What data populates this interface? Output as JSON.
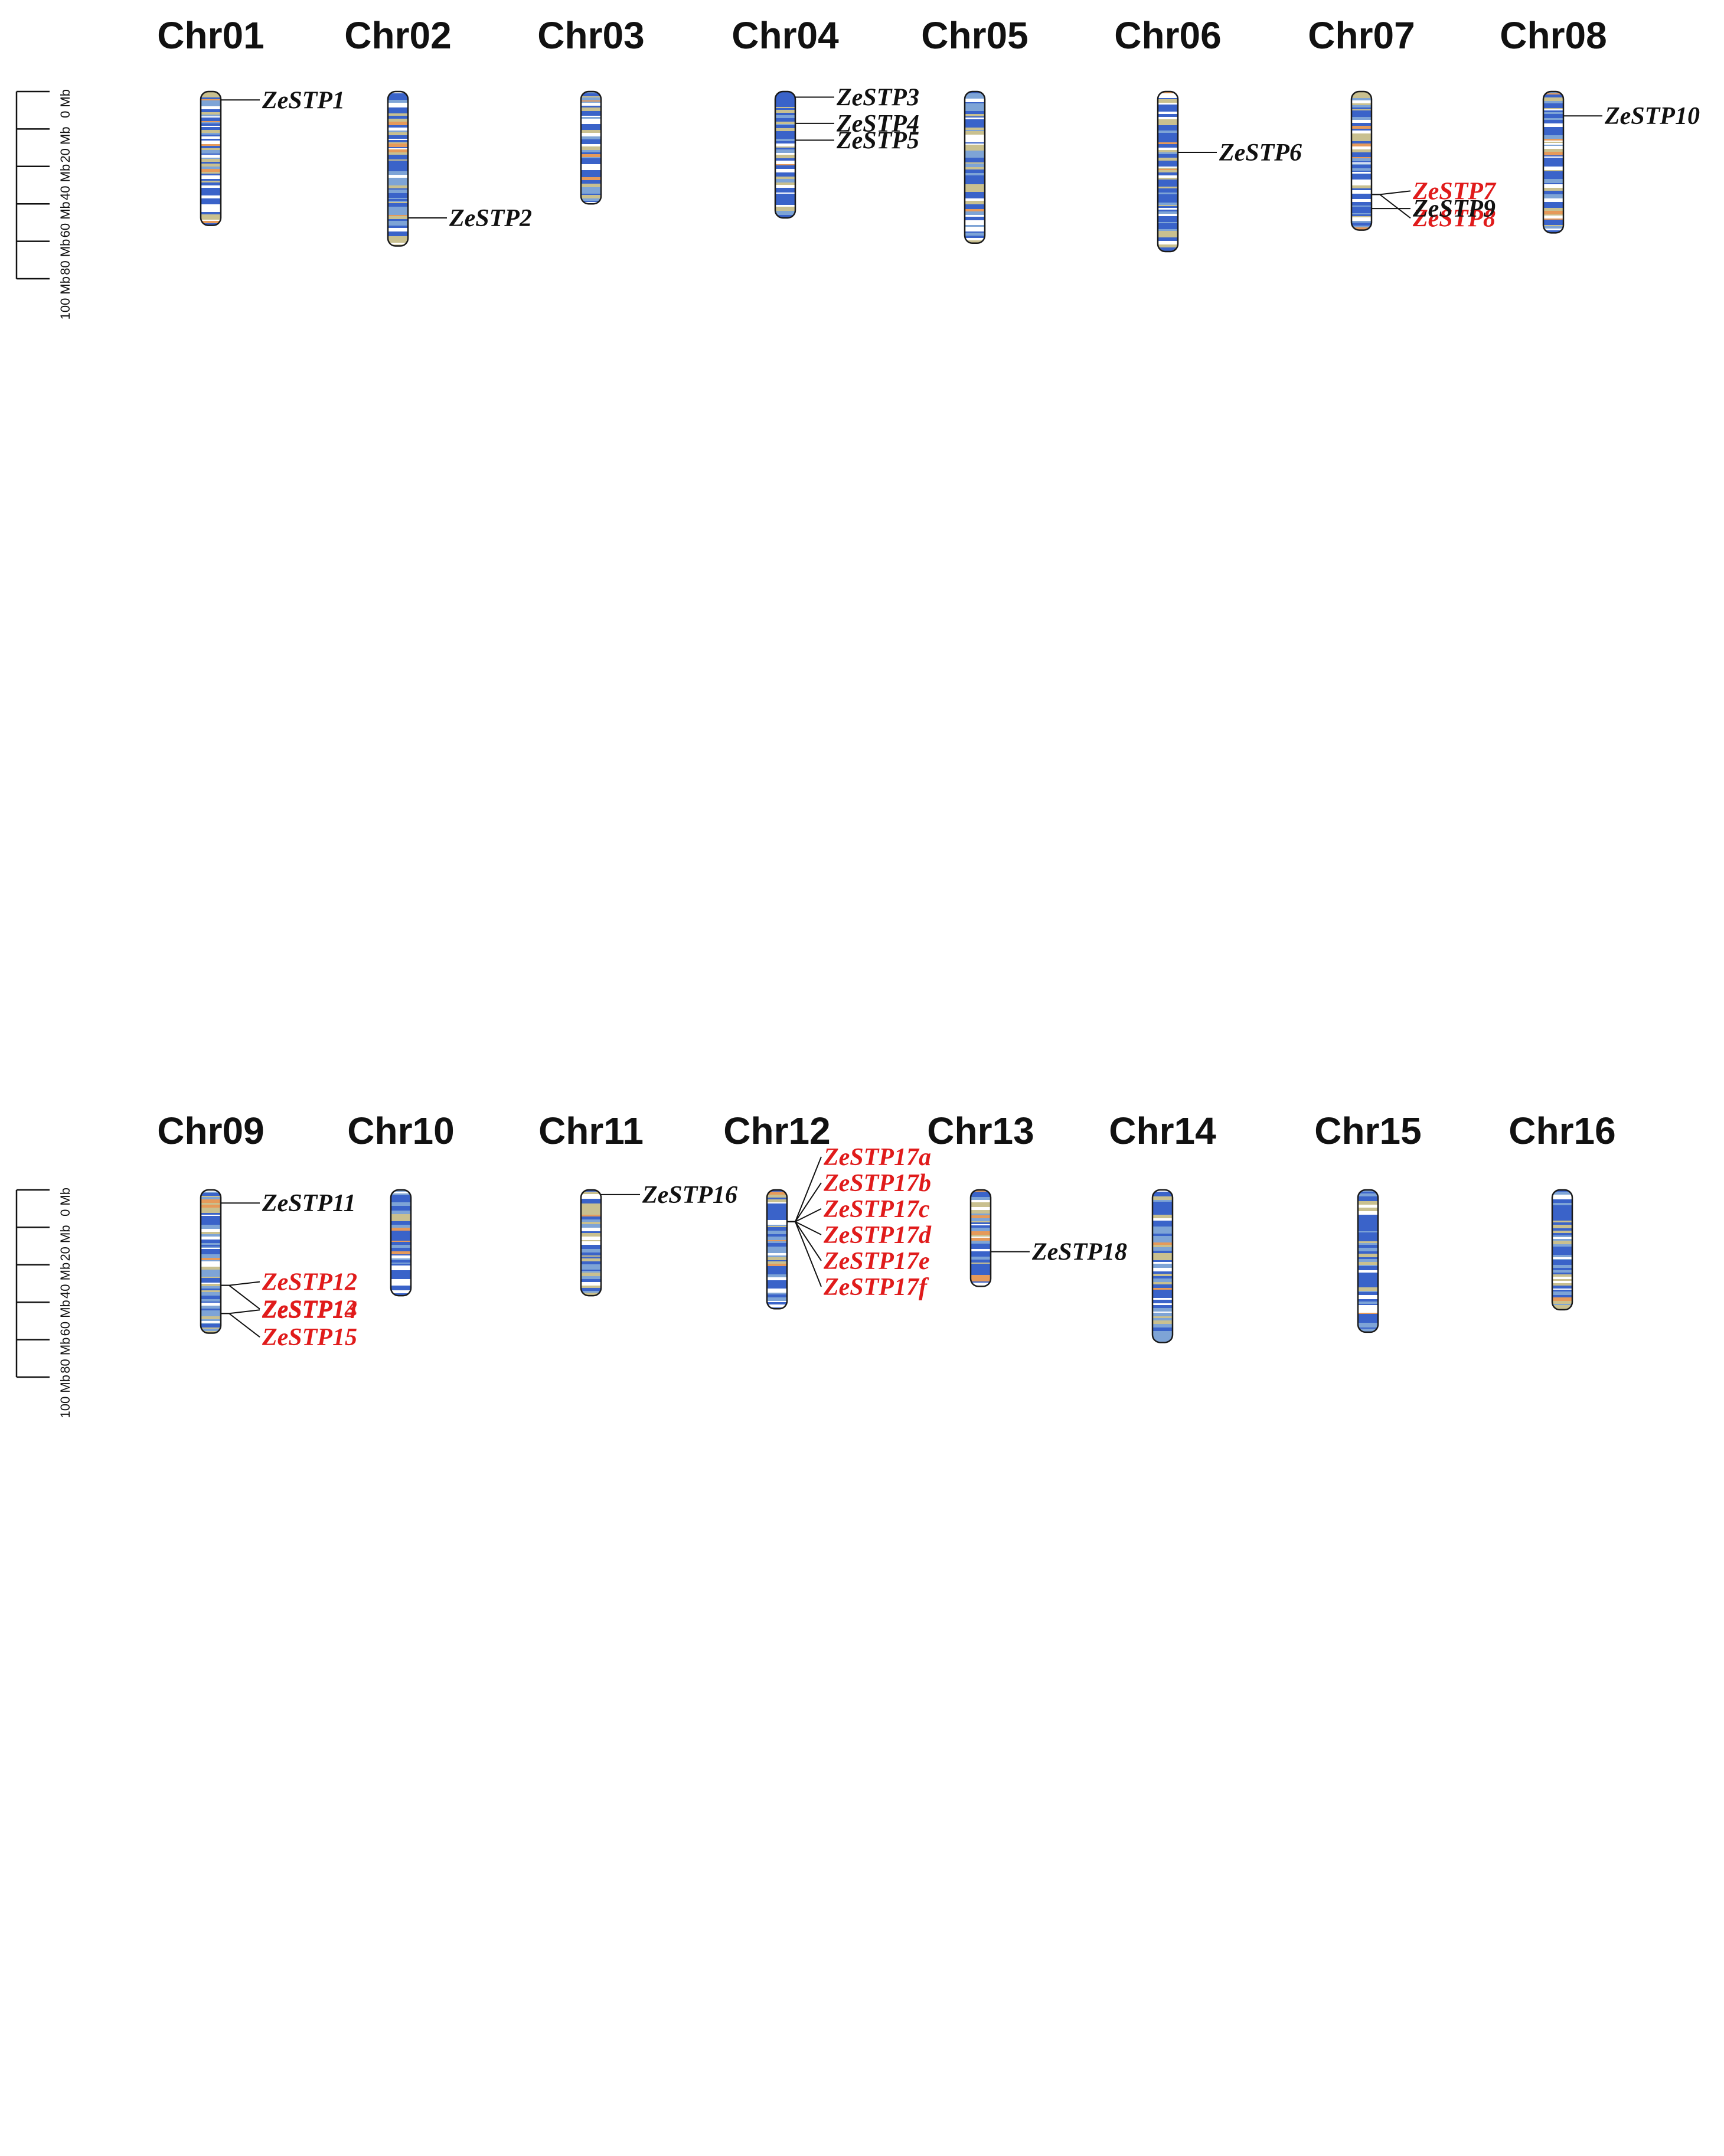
{
  "scale_unit": "Mb",
  "scale_ticks": [
    "0 Mb",
    "20 Mb",
    "40 Mb",
    "60 Mb",
    "80 Mb",
    "100 Mb"
  ],
  "colors": {
    "segmental": "#e01b1b",
    "normal": "#111111",
    "density_low": "#ffffff",
    "density_mid": "#3a63c9",
    "density_mid2": "#7ea4d6",
    "density_high": "#c9c08f",
    "density_peak": "#e69a5a",
    "outline": "#1a1a1a"
  },
  "panels": [
    {
      "chromosomes": [
        {
          "name": "Chr01",
          "length_mb": 71.5,
          "genes": [
            {
              "name": "ZeSTP1",
              "pos_mb": 4.5,
              "segmental": false
            }
          ]
        },
        {
          "name": "Chr02",
          "length_mb": 82.5,
          "genes": [
            {
              "name": "ZeSTP2",
              "pos_mb": 67.5,
              "segmental": false
            }
          ]
        },
        {
          "name": "Chr03",
          "length_mb": 60.0,
          "genes": []
        },
        {
          "name": "Chr04",
          "length_mb": 67.5,
          "genes": [
            {
              "name": "ZeSTP3",
              "pos_mb": 3.0,
              "segmental": false
            },
            {
              "name": "ZeSTP4",
              "pos_mb": 17.0,
              "segmental": false
            },
            {
              "name": "ZeSTP5",
              "pos_mb": 26.0,
              "segmental": false
            }
          ]
        },
        {
          "name": "Chr05",
          "length_mb": 81.0,
          "genes": []
        },
        {
          "name": "Chr06",
          "length_mb": 85.5,
          "genes": [
            {
              "name": "ZeSTP6",
              "pos_mb": 32.5,
              "segmental": false
            }
          ]
        },
        {
          "name": "Chr07",
          "length_mb": 74.0,
          "genes": [
            {
              "name": "ZeSTP7",
              "pos_mb": 55.0,
              "segmental": true
            },
            {
              "name": "ZeSTP8",
              "pos_mb": 55.2,
              "segmental": true
            },
            {
              "name": "ZeSTP9",
              "pos_mb": 62.5,
              "segmental": false
            }
          ]
        },
        {
          "name": "Chr08",
          "length_mb": 75.5,
          "genes": [
            {
              "name": "ZeSTP10",
              "pos_mb": 13.0,
              "segmental": false
            }
          ]
        }
      ]
    },
    {
      "chromosomes": [
        {
          "name": "Chr09",
          "length_mb": 76.5,
          "genes": [
            {
              "name": "ZeSTP11",
              "pos_mb": 7.0,
              "segmental": false
            },
            {
              "name": "ZeSTP12",
              "pos_mb": 51.0,
              "segmental": true
            },
            {
              "name": "ZeSTP13",
              "pos_mb": 51.3,
              "segmental": true
            },
            {
              "name": "ZeSTP14",
              "pos_mb": 66.0,
              "segmental": true
            },
            {
              "name": "ZeSTP15",
              "pos_mb": 66.3,
              "segmental": true
            }
          ]
        },
        {
          "name": "Chr10",
          "length_mb": 56.5,
          "genes": []
        },
        {
          "name": "Chr11",
          "length_mb": 56.5,
          "genes": [
            {
              "name": "ZeSTP16",
              "pos_mb": 2.5,
              "segmental": false
            }
          ]
        },
        {
          "name": "Chr12",
          "length_mb": 63.5,
          "genes": [
            {
              "name": "ZeSTP17a",
              "pos_mb": 17.0,
              "segmental": true
            },
            {
              "name": "ZeSTP17b",
              "pos_mb": 17.1,
              "segmental": true
            },
            {
              "name": "ZeSTP17c",
              "pos_mb": 17.2,
              "segmental": true
            },
            {
              "name": "ZeSTP17d",
              "pos_mb": 17.3,
              "segmental": true
            },
            {
              "name": "ZeSTP17e",
              "pos_mb": 17.4,
              "segmental": true
            },
            {
              "name": "ZeSTP17f",
              "pos_mb": 17.5,
              "segmental": true
            }
          ]
        },
        {
          "name": "Chr13",
          "length_mb": 51.5,
          "genes": [
            {
              "name": "ZeSTP18",
              "pos_mb": 33.0,
              "segmental": false
            }
          ]
        },
        {
          "name": "Chr14",
          "length_mb": 81.5,
          "genes": []
        },
        {
          "name": "Chr15",
          "length_mb": 76.0,
          "genes": []
        },
        {
          "name": "Chr16",
          "length_mb": 64.0,
          "genes": []
        }
      ]
    }
  ]
}
